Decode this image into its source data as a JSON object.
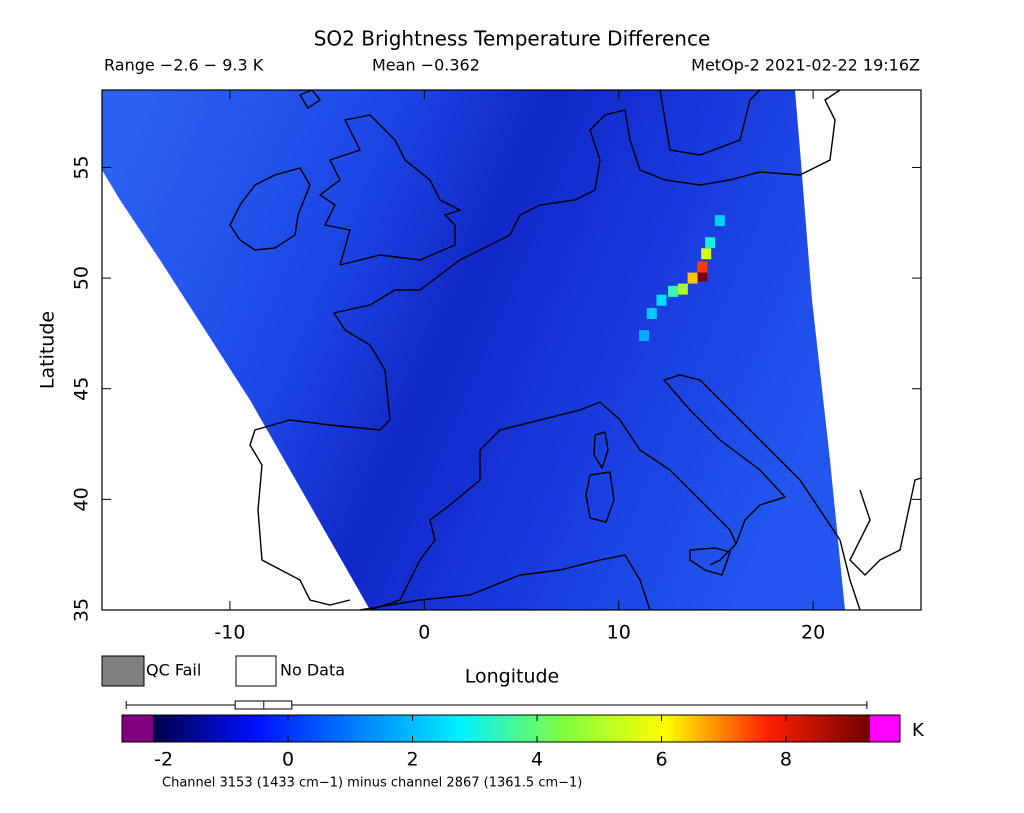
{
  "header": {
    "title": "SO2 Brightness Temperature Difference",
    "range": "Range −2.6 − 9.3 K",
    "mean": "Mean −0.362",
    "source": "MetOp-2 2021-02-22 19:16Z"
  },
  "map": {
    "type": "heatmap",
    "xlabel": "Longitude",
    "ylabel": "Latitude",
    "xlim": [
      -16.58,
      25.55
    ],
    "ylim": [
      35,
      58.5
    ],
    "xticks": [
      -10,
      0,
      10,
      20
    ],
    "yticks": [
      35,
      40,
      45,
      50,
      55
    ],
    "plume": [
      {
        "lon": 14.3,
        "lat": 50.1,
        "value": 9.3
      },
      {
        "lon": 14.3,
        "lat": 50.5,
        "value": 7.5
      },
      {
        "lon": 13.8,
        "lat": 50.0,
        "value": 6.5
      },
      {
        "lon": 14.5,
        "lat": 51.1,
        "value": 5.5
      },
      {
        "lon": 14.7,
        "lat": 51.6,
        "value": 3.0
      },
      {
        "lon": 15.2,
        "lat": 52.6,
        "value": 2.3
      },
      {
        "lon": 13.3,
        "lat": 49.5,
        "value": 5.0
      },
      {
        "lon": 12.8,
        "lat": 49.4,
        "value": 3.5
      },
      {
        "lon": 12.2,
        "lat": 49.0,
        "value": 2.5
      },
      {
        "lon": 11.7,
        "lat": 48.4,
        "value": 2.2
      },
      {
        "lon": 11.3,
        "lat": 47.4,
        "value": 1.8
      }
    ]
  },
  "legend": {
    "qc_fail": "QC Fail",
    "no_data": "No Data",
    "qc_color": "#808080"
  },
  "colorbar": {
    "lim": [
      -2.17,
      9.35
    ],
    "ticks": [
      -2,
      0,
      2,
      4,
      6,
      8
    ],
    "unit": "K",
    "colors": [
      "#00004a",
      "#0010ff",
      "#0080ff",
      "#00f0ff",
      "#80ff40",
      "#ffff00",
      "#ff2000",
      "#700000"
    ],
    "under_color": "#800080",
    "over_color": "#ff00ff",
    "note": "Channel 3153 (1433 cm−1) minus channel 2867 (1361.5 cm−1)",
    "box": {
      "min": -2.6,
      "q1": -0.85,
      "median": -0.39,
      "q3": 0.06,
      "max": 9.3
    }
  }
}
